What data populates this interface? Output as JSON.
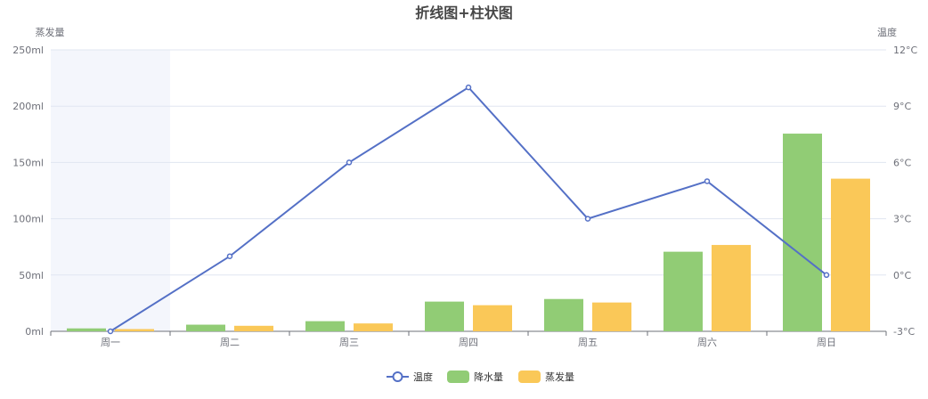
{
  "chart_data": {
    "type": "bar+line",
    "title": "折线图+柱状图",
    "categories": [
      "周一",
      "周二",
      "周三",
      "周四",
      "周五",
      "周六",
      "周日"
    ],
    "y_left": {
      "name": "蒸发量",
      "min": 0,
      "max": 250,
      "interval": 50,
      "unit": "ml",
      "ticks": [
        "0ml",
        "50ml",
        "100ml",
        "150ml",
        "200ml",
        "250ml"
      ]
    },
    "y_right": {
      "name": "温度",
      "min": -3,
      "max": 12,
      "interval": 3,
      "unit": "°C",
      "ticks": [
        "-3°C",
        "0°C",
        "3°C",
        "6°C",
        "9°C",
        "12°C"
      ]
    },
    "series": [
      {
        "name": "温度",
        "type": "line",
        "axis": "right",
        "color": "#5470c6",
        "values": [
          -3,
          1,
          6,
          10,
          3,
          5,
          0
        ]
      },
      {
        "name": "降水量",
        "type": "bar",
        "axis": "left",
        "color": "#91cc75",
        "values": [
          2.6,
          5.9,
          9.0,
          26.4,
          28.7,
          70.7,
          175.6
        ]
      },
      {
        "name": "蒸发量",
        "type": "bar",
        "axis": "left",
        "color": "#fac858",
        "values": [
          2.0,
          4.9,
          7.0,
          23.2,
          25.6,
          76.7,
          135.6
        ]
      }
    ],
    "highlighted_category": "周一",
    "grid": true,
    "legend_position": "bottom"
  }
}
